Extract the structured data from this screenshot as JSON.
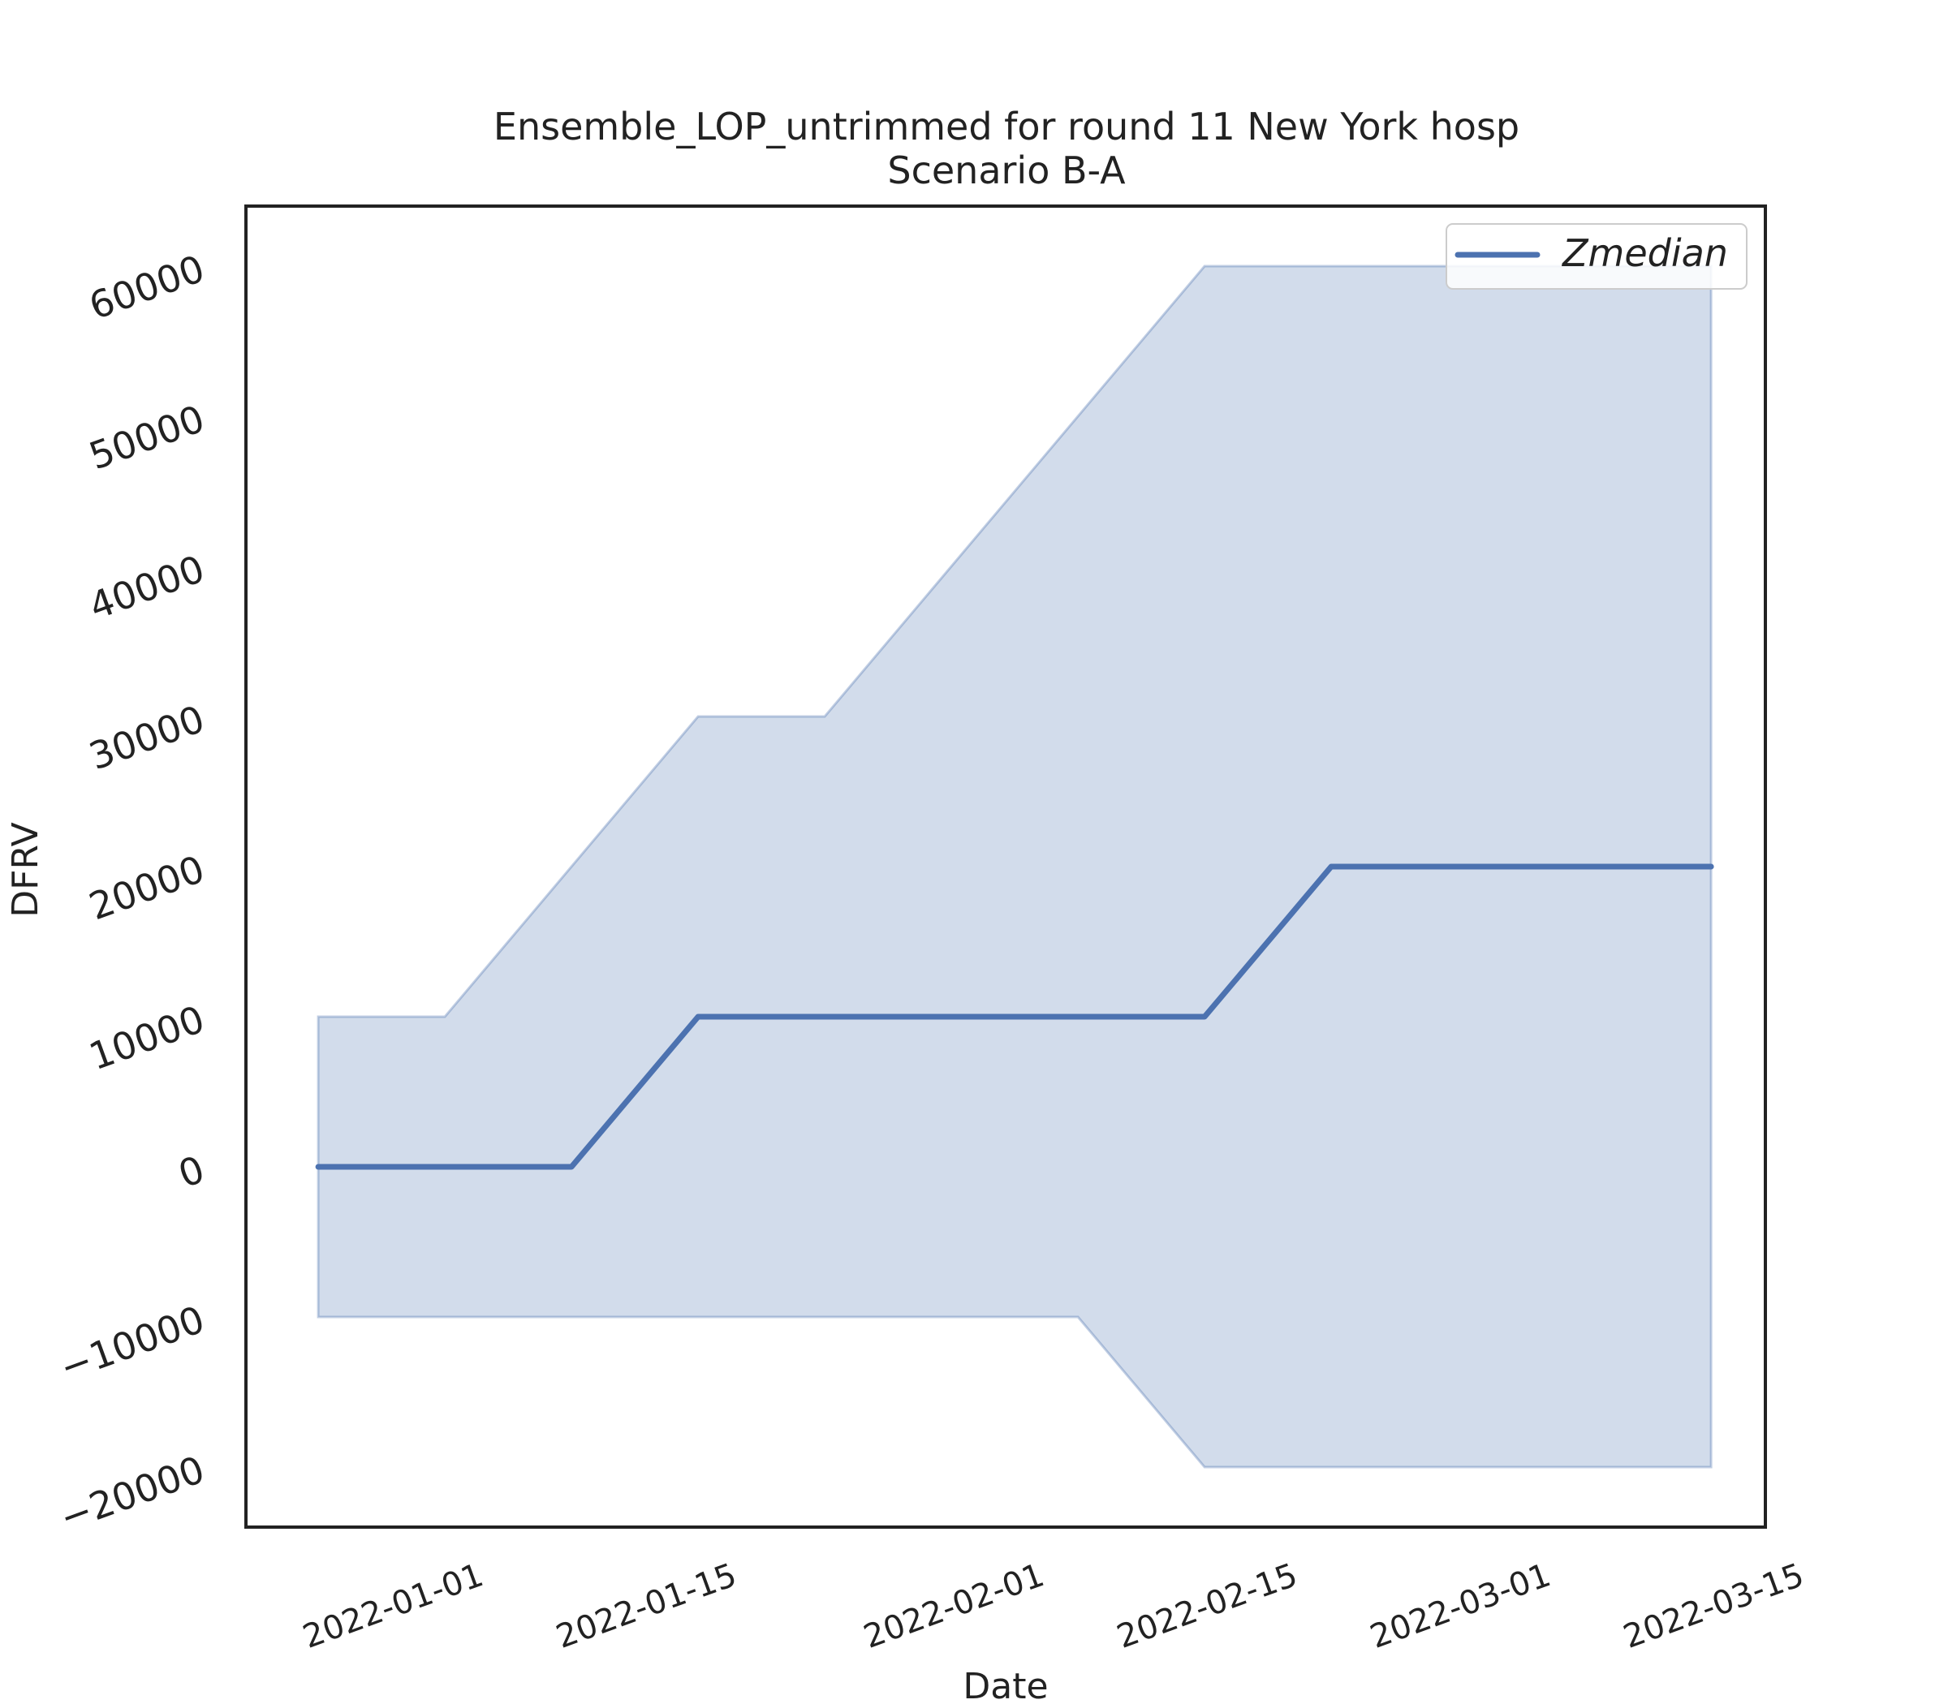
{
  "chart_data": {
    "type": "line",
    "title": "Ensemble_LOP_untrimmed for round 11 New York hosp",
    "subtitle": "Scenario B-A",
    "xlabel": "Date",
    "ylabel": "DFRV",
    "x_ticks": [
      "2022-01-01",
      "2022-01-15",
      "2022-02-01",
      "2022-02-15",
      "2022-03-01",
      "2022-03-15"
    ],
    "y_ticks": [
      -20000,
      -10000,
      0,
      10000,
      20000,
      30000,
      40000,
      50000,
      60000
    ],
    "y_tick_labels": [
      "−20000",
      "−10000",
      "0",
      "10000",
      "20000",
      "30000",
      "40000",
      "50000",
      "60000"
    ],
    "xlim": [
      "2021-12-21",
      "2022-03-15"
    ],
    "ylim": [
      -24000,
      64000
    ],
    "grid": false,
    "legend_position": "top-right",
    "x": [
      "2021-12-25",
      "2022-01-01",
      "2022-01-08",
      "2022-01-15",
      "2022-01-22",
      "2022-01-29",
      "2022-02-05",
      "2022-02-12",
      "2022-02-19",
      "2022-02-26",
      "2022-03-05",
      "2022-03-12"
    ],
    "series": [
      {
        "name": "Zmedian",
        "color": "#4c72b0",
        "values": [
          0,
          0,
          0,
          10000,
          10000,
          10000,
          10000,
          10000,
          20000,
          20000,
          20000,
          20000
        ]
      }
    ],
    "band": {
      "color": "#4c72b0",
      "opacity": 0.25,
      "lower": [
        -10000,
        -10000,
        -10000,
        -10000,
        -10000,
        -10000,
        -10000,
        -20000,
        -20000,
        -20000,
        -20000,
        -20000
      ],
      "upper": [
        10000,
        10000,
        20000,
        30000,
        30000,
        40000,
        50000,
        60000,
        60000,
        60000,
        60000,
        60000
      ]
    }
  }
}
